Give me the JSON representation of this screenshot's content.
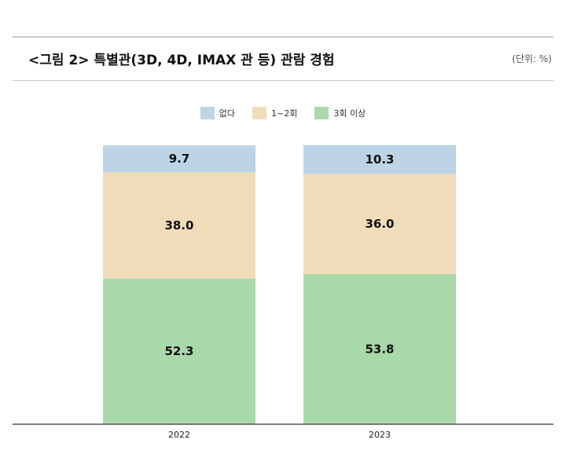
{
  "header": {
    "title": "<그림 2> 특별관(3D, 4D, IMAX 관 등) 관람 경험",
    "unit": "(단위: %)"
  },
  "colors": {
    "none": "#bcd4e6",
    "one_two": "#f1dcb9",
    "three_plus": "#a9d8ab",
    "axis": "#555555"
  },
  "chart_data": {
    "type": "bar",
    "stacked": true,
    "categories": [
      "2022",
      "2023"
    ],
    "series": [
      {
        "name": "3회 이상",
        "values": [
          52.3,
          53.8
        ],
        "color": "#a9d8ab"
      },
      {
        "name": "1~2회",
        "values": [
          38.0,
          36.0
        ],
        "color": "#f1dcb9"
      },
      {
        "name": "없다",
        "values": [
          9.7,
          10.3
        ],
        "color": "#bcd4e6"
      }
    ],
    "data_labels": [
      [
        "52.3",
        "53.8"
      ],
      [
        "38.0",
        "36.0"
      ],
      [
        "9.7",
        "10.3"
      ]
    ],
    "legend": [
      "없다",
      "1~2회",
      "3회 이상"
    ],
    "legend_position": "top",
    "ylim": [
      0,
      100
    ],
    "grid": false
  }
}
